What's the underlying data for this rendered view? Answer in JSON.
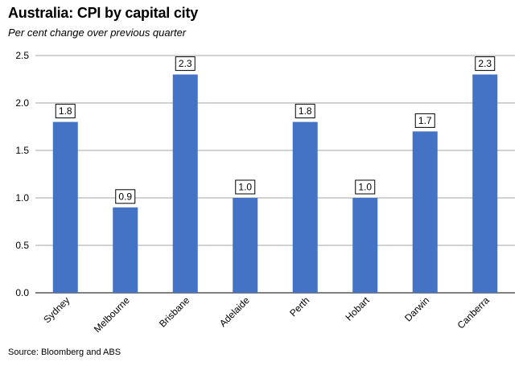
{
  "header": {
    "title": "Australia: CPI by capital city",
    "subtitle": "Per cent change over previous quarter"
  },
  "footer": {
    "source": "Source: Bloomberg and ABS"
  },
  "chart_data": {
    "type": "bar",
    "title": "Australia: CPI by capital city",
    "subtitle": "Per cent change over previous quarter",
    "categories": [
      "Sydney",
      "Melbourne",
      "Brisbane",
      "Adelaide",
      "Perth",
      "Hobart",
      "Darwin",
      "Canberra"
    ],
    "values": [
      1.8,
      0.9,
      2.3,
      1.0,
      1.8,
      1.0,
      1.7,
      2.3
    ],
    "data_labels": [
      "1.8",
      "0.9",
      "2.3",
      "1.0",
      "1.8",
      "1.0",
      "1.7",
      "2.3"
    ],
    "y_ticks": [
      "0.0",
      "0.5",
      "1.0",
      "1.5",
      "2.0",
      "2.5"
    ],
    "ylim": [
      0,
      2.5
    ],
    "xlabel": "",
    "ylabel": "",
    "grid": true,
    "bar_color": "#4472C4",
    "grid_color": "#A6A6A6"
  }
}
